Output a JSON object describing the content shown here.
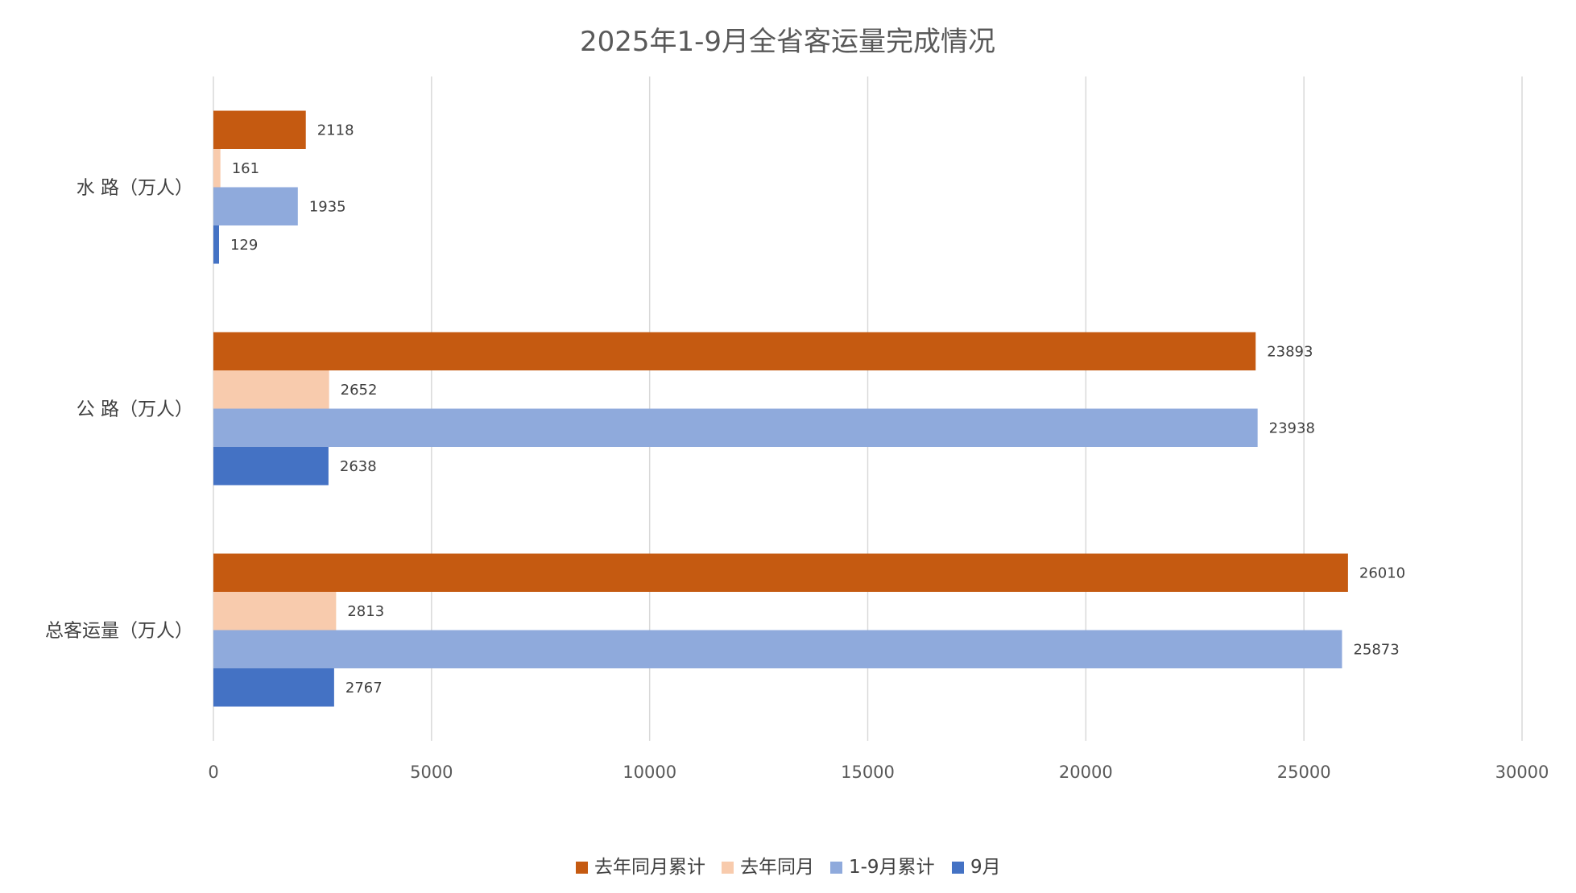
{
  "chart_data": {
    "type": "bar",
    "orientation": "horizontal",
    "title": "2025年1-9月全省客运量完成情况",
    "categories": [
      "水 路（万人）",
      "公 路（万人）",
      "总客运量（万人）"
    ],
    "series": [
      {
        "name": "去年同月累计",
        "color": "#C55A11",
        "values": [
          2118,
          23893,
          26010
        ]
      },
      {
        "name": "去年同月",
        "color": "#F8CBAD",
        "values": [
          161,
          2652,
          2813
        ]
      },
      {
        "name": "1-9月累计",
        "color": "#8FAADC",
        "values": [
          1935,
          23938,
          25873
        ]
      },
      {
        "name": "9月",
        "color": "#4472C4",
        "values": [
          129,
          2638,
          2767
        ]
      }
    ],
    "xlim": [
      0,
      30000
    ],
    "x_ticks": [
      "0",
      "5000",
      "10000",
      "15000",
      "20000",
      "25000",
      "30000"
    ],
    "grid": true,
    "legend_position": "bottom"
  }
}
